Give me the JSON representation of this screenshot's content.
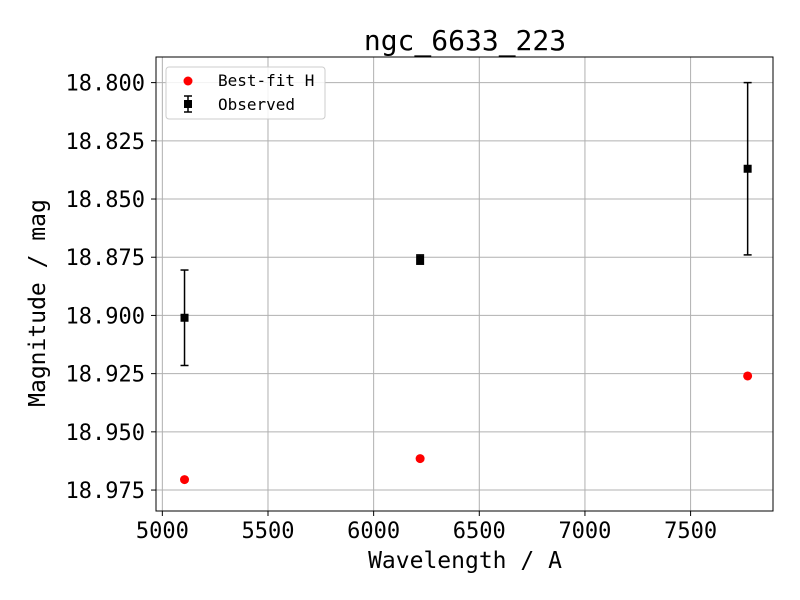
{
  "chart_data": {
    "type": "scatter",
    "title": "ngc_6633_223",
    "xlabel": "Wavelength / A",
    "ylabel": "Magnitude / mag",
    "xlim": [
      4970,
      7890
    ],
    "ylim": [
      18.984,
      18.789
    ],
    "y_inverted": true,
    "grid": true,
    "x_ticks": [
      5000,
      5500,
      6000,
      6500,
      7000,
      7500
    ],
    "x_tick_labels": [
      "5000",
      "5500",
      "6000",
      "6500",
      "7000",
      "7500"
    ],
    "y_ticks": [
      18.8,
      18.825,
      18.85,
      18.875,
      18.9,
      18.925,
      18.95,
      18.975
    ],
    "y_tick_labels": [
      "18.800",
      "18.825",
      "18.850",
      "18.875",
      "18.900",
      "18.925",
      "18.950",
      "18.975"
    ],
    "legend_position": "top-left",
    "series": [
      {
        "name": "Best-fit H",
        "kind": "points",
        "color": "#ff0000",
        "marker": "circle",
        "x": [
          5105,
          6220,
          7770
        ],
        "y": [
          18.9705,
          18.9615,
          18.926
        ]
      },
      {
        "name": "Observed",
        "kind": "errorbar",
        "color": "#000000",
        "marker": "square",
        "x": [
          5105,
          6220,
          7770
        ],
        "y": [
          18.901,
          18.876,
          18.837
        ],
        "yerr": [
          0.0205,
          0.002,
          0.037
        ]
      }
    ]
  }
}
